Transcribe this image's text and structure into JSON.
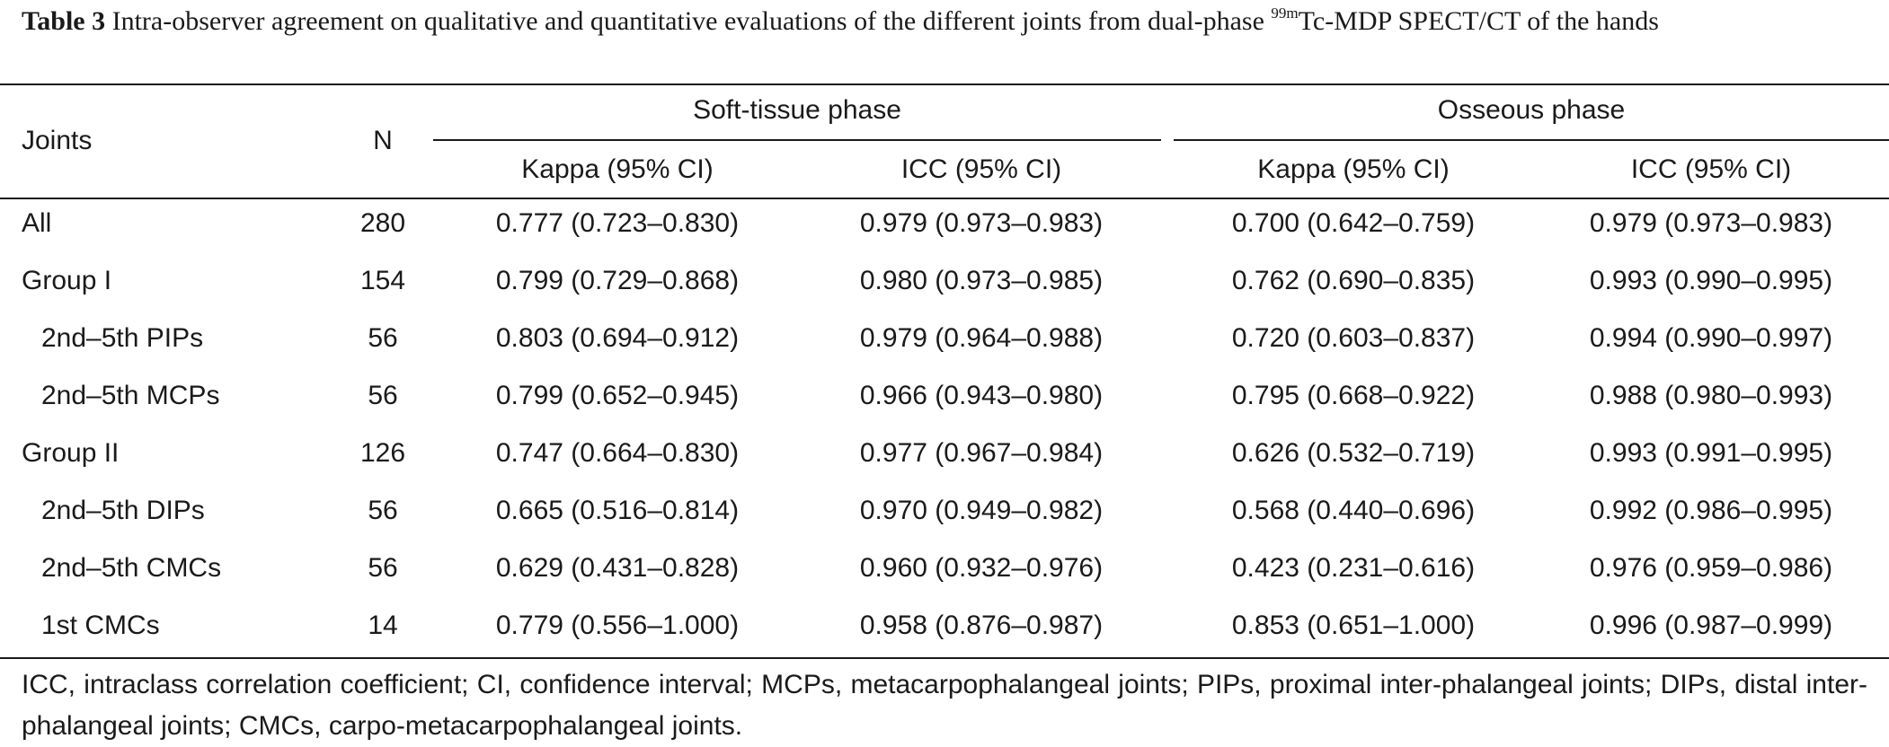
{
  "caption": {
    "label": "Table 3",
    "text_before_sup": "Intra-observer agreement on qualitative and quantitative evaluations of the different joints from dual-phase ",
    "superscript": "99m",
    "text_after_sup": "Tc-MDP SPECT/CT of the hands"
  },
  "header": {
    "joints": "Joints",
    "n": "N",
    "group_soft": "Soft-tissue phase",
    "group_osseous": "Osseous phase",
    "kappa": "Kappa (95% CI)",
    "icc": "ICC (95% CI)"
  },
  "rows": [
    {
      "joint": "All",
      "n": "280",
      "st_kappa": "0.777 (0.723–0.830)",
      "st_icc": "0.979 (0.973–0.983)",
      "os_kappa": "0.700 (0.642–0.759)",
      "os_icc": "0.979 (0.973–0.983)"
    },
    {
      "joint": "Group I",
      "n": "154",
      "st_kappa": "0.799 (0.729–0.868)",
      "st_icc": "0.980 (0.973–0.985)",
      "os_kappa": "0.762 (0.690–0.835)",
      "os_icc": "0.993 (0.990–0.995)"
    },
    {
      "joint": "2nd–5th PIPs",
      "n": "56",
      "st_kappa": "0.803 (0.694–0.912)",
      "st_icc": "0.979 (0.964–0.988)",
      "os_kappa": "0.720 (0.603–0.837)",
      "os_icc": "0.994 (0.990–0.997)"
    },
    {
      "joint": "2nd–5th MCPs",
      "n": "56",
      "st_kappa": "0.799 (0.652–0.945)",
      "st_icc": "0.966 (0.943–0.980)",
      "os_kappa": "0.795 (0.668–0.922)",
      "os_icc": "0.988 (0.980–0.993)"
    },
    {
      "joint": "Group II",
      "n": "126",
      "st_kappa": "0.747 (0.664–0.830)",
      "st_icc": "0.977 (0.967–0.984)",
      "os_kappa": "0.626 (0.532–0.719)",
      "os_icc": "0.993 (0.991–0.995)"
    },
    {
      "joint": "2nd–5th DIPs",
      "n": "56",
      "st_kappa": "0.665 (0.516–0.814)",
      "st_icc": "0.970 (0.949–0.982)",
      "os_kappa": "0.568 (0.440–0.696)",
      "os_icc": "0.992 (0.986–0.995)"
    },
    {
      "joint": "2nd–5th CMCs",
      "n": "56",
      "st_kappa": "0.629 (0.431–0.828)",
      "st_icc": "0.960 (0.932–0.976)",
      "os_kappa": "0.423 (0.231–0.616)",
      "os_icc": "0.976 (0.959–0.986)"
    },
    {
      "joint": "1st CMCs",
      "n": "14",
      "st_kappa": "0.779 (0.556–1.000)",
      "st_icc": "0.958 (0.876–0.987)",
      "os_kappa": "0.853 (0.651–1.000)",
      "os_icc": "0.996 (0.987–0.999)"
    }
  ],
  "footnote": "ICC, intraclass correlation coefficient; CI, confidence interval; MCPs, metacarpophalangeal joints; PIPs, proximal inter-phalangeal joints; DIPs, distal inter-phalangeal joints; CMCs, carpo-metacarpophalangeal joints."
}
